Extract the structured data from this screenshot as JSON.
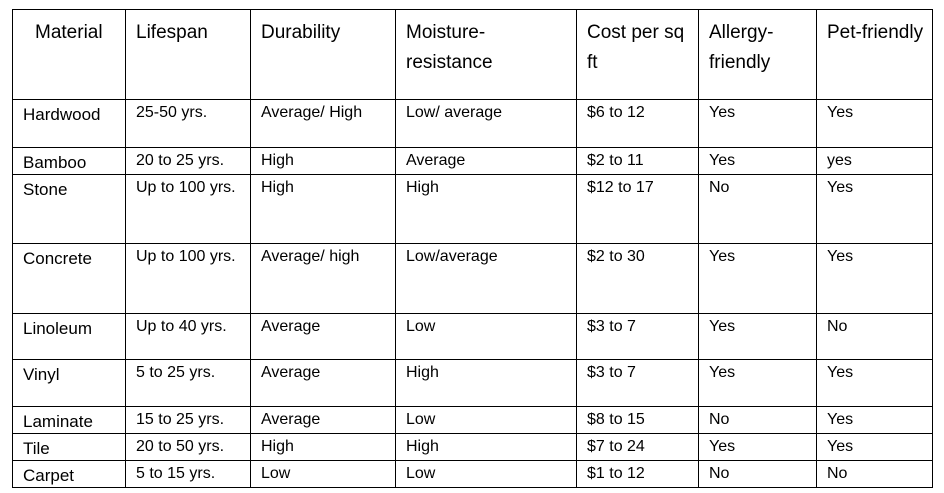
{
  "table": {
    "headers": [
      "Material",
      "Lifespan",
      "Durability",
      "Moisture-resistance",
      "Cost per sq ft",
      "Allergy-friendly",
      "Pet-friendly"
    ],
    "rows": [
      [
        "Hardwood",
        "25-50 yrs.",
        "Average/ High",
        "Low/ average",
        "$6 to 12",
        "Yes",
        "Yes"
      ],
      [
        "Bamboo",
        "20 to 25 yrs.",
        "High",
        "Average",
        "$2 to 11",
        "Yes",
        "yes"
      ],
      [
        "Stone",
        "Up to 100 yrs.",
        "High",
        "High",
        "$12 to 17",
        "No",
        "Yes"
      ],
      [
        "Concrete",
        "Up to 100 yrs.",
        "Average/ high",
        "Low/average",
        "$2 to 30",
        "Yes",
        "Yes"
      ],
      [
        "Linoleum",
        "Up to 40 yrs.",
        "Average",
        "Low",
        "$3 to 7",
        "Yes",
        "No"
      ],
      [
        "Vinyl",
        "5 to 25 yrs.",
        "Average",
        "High",
        "$3 to 7",
        "Yes",
        "Yes"
      ],
      [
        "Laminate",
        "15 to 25 yrs.",
        "Average",
        "Low",
        "$8 to 15",
        "No",
        "Yes"
      ],
      [
        "Tile",
        "20 to 50 yrs.",
        "High",
        "High",
        "$7 to 24",
        "Yes",
        "Yes"
      ],
      [
        "Carpet",
        "5 to 15 yrs.",
        "Low",
        "Low",
        "$1 to 12",
        "No",
        "No"
      ]
    ]
  }
}
